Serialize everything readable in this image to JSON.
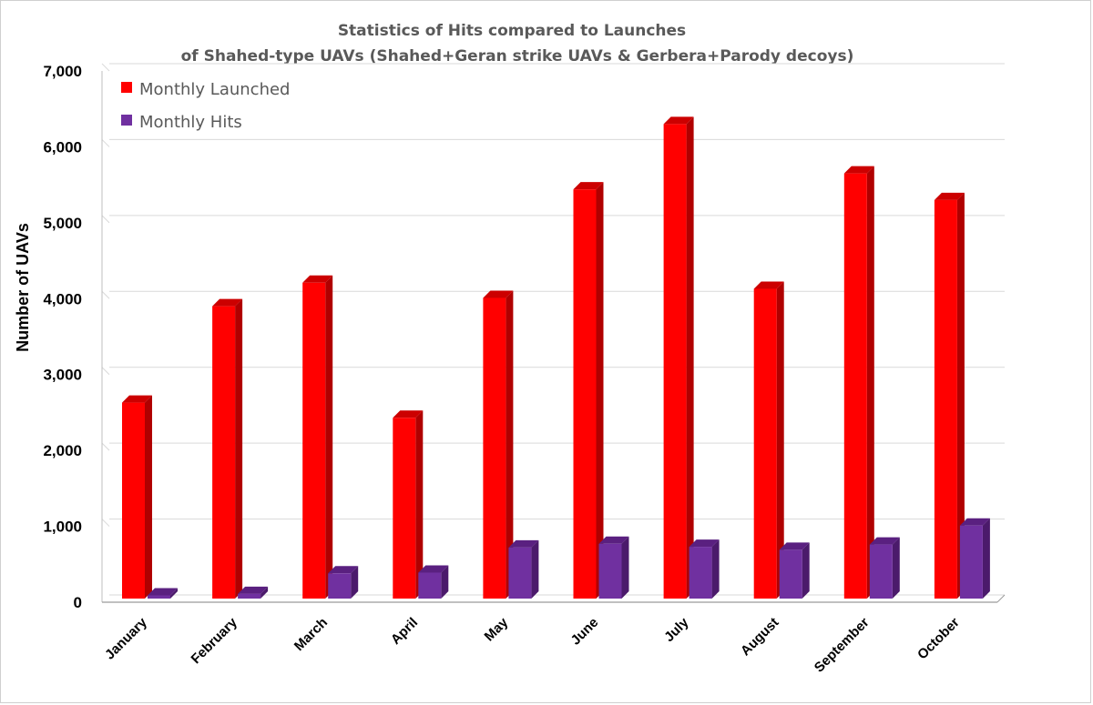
{
  "chart_data": {
    "type": "bar",
    "title": [
      "Statistics of Hits compared to Launches",
      "of Shahed-type UAVs (Shahed+Geran strike UAVs & Gerbera+Parody decoys)"
    ],
    "xlabel": "",
    "ylabel": "Number of UAVs",
    "ylim": [
      0,
      7000
    ],
    "yticks": [
      0,
      1000,
      2000,
      3000,
      4000,
      5000,
      6000,
      7000
    ],
    "ytick_labels": [
      "0",
      "1,000",
      "2,000",
      "3,000",
      "4,000",
      "5,000",
      "6,000",
      "7,000"
    ],
    "grid": true,
    "legend_position": "top-left",
    "style": "3d-clustered-column",
    "categories": [
      "January",
      "February",
      "March",
      "April",
      "May",
      "June",
      "July",
      "August",
      "September",
      "October"
    ],
    "series": [
      {
        "name": "Monthly Launched",
        "color": "#ff0000",
        "top_color": "#cc0000",
        "side_color": "#b00000",
        "values": [
          2630,
          3900,
          4210,
          2430,
          4010,
          5440,
          6300,
          4130,
          5650,
          5300
        ]
      },
      {
        "name": "Monthly Hits",
        "color": "#7030a0",
        "top_color": "#5a2080",
        "side_color": "#4b1a6b",
        "values": [
          90,
          110,
          380,
          390,
          720,
          770,
          730,
          690,
          760,
          1010
        ]
      }
    ]
  }
}
